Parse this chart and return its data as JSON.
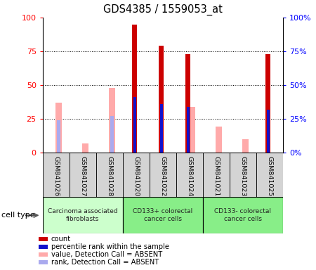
{
  "title": "GDS4385 / 1559053_at",
  "samples": [
    "GSM841026",
    "GSM841027",
    "GSM841028",
    "GSM841020",
    "GSM841022",
    "GSM841024",
    "GSM841021",
    "GSM841023",
    "GSM841025"
  ],
  "cell_groups": [
    {
      "label": "Carcinoma associated\nfibroblasts",
      "color": "#ccffcc",
      "start": 0,
      "end": 3
    },
    {
      "label": "CD133+ colorectal\ncancer cells",
      "color": "#88ee88",
      "start": 3,
      "end": 6
    },
    {
      "label": "CD133- colorectal\ncancer cells",
      "color": "#88ee88",
      "start": 6,
      "end": 9
    }
  ],
  "count_values": [
    0,
    0,
    0,
    95,
    79,
    73,
    0,
    0,
    73
  ],
  "rank_values": [
    0,
    0,
    0,
    41,
    36,
    34,
    0,
    0,
    32
  ],
  "absent_value_values": [
    37,
    7,
    48,
    0,
    0,
    34,
    19,
    10,
    0
  ],
  "absent_rank_values": [
    24,
    0,
    27,
    0,
    0,
    0,
    0,
    0,
    0
  ],
  "count_color": "#cc0000",
  "rank_color": "#1111cc",
  "absent_value_color": "#ffaaaa",
  "absent_rank_color": "#aaaaee",
  "ylim": [
    0,
    100
  ],
  "yticks": [
    0,
    25,
    50,
    75,
    100
  ],
  "legend_items": [
    {
      "label": "count",
      "color": "#cc0000"
    },
    {
      "label": "percentile rank within the sample",
      "color": "#1111cc"
    },
    {
      "label": "value, Detection Call = ABSENT",
      "color": "#ffaaaa"
    },
    {
      "label": "rank, Detection Call = ABSENT",
      "color": "#aaaaee"
    }
  ]
}
